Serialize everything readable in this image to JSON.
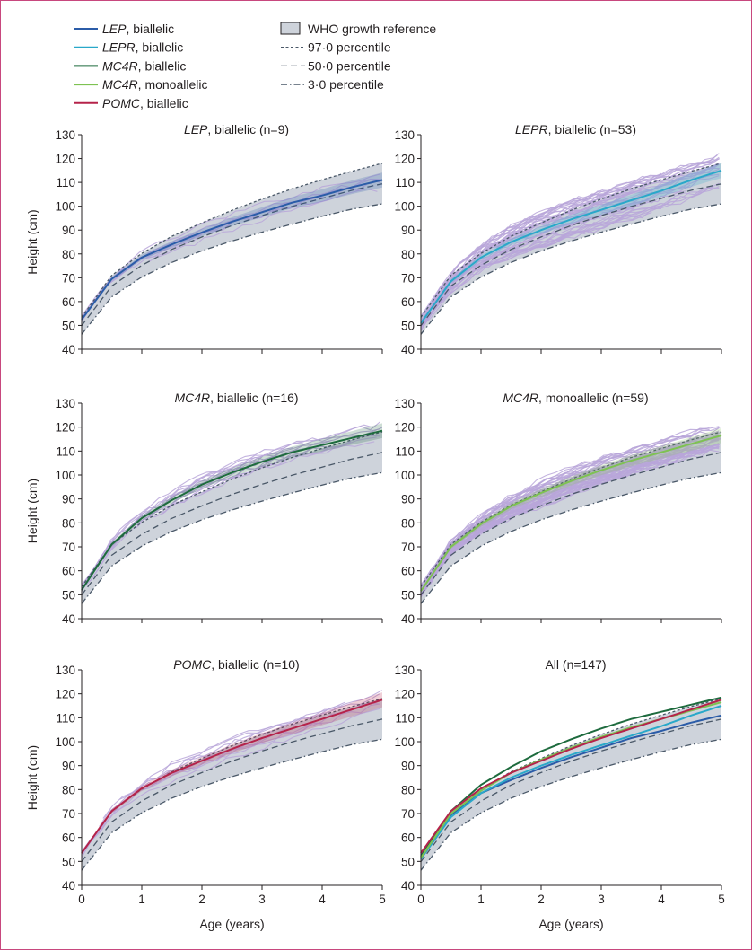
{
  "legend": {
    "items": [
      {
        "gene": "LEP",
        "suffix": ", biallelic",
        "color": "#2b5ca8",
        "kind": "line"
      },
      {
        "gene": "LEPR",
        "suffix": ", biallelic",
        "color": "#29a8c9",
        "kind": "line"
      },
      {
        "gene": "MC4R",
        "suffix": ", biallelic",
        "color": "#1e6b3e",
        "kind": "line"
      },
      {
        "gene": "MC4R",
        "suffix": ", monoallelic",
        "color": "#7ec252",
        "kind": "line"
      },
      {
        "gene": "POMC",
        "suffix": ", biallelic",
        "color": "#b5234a",
        "kind": "line"
      }
    ],
    "reference": [
      {
        "label": "WHO growth reference",
        "kind": "box"
      },
      {
        "label": "97·0 percentile",
        "kind": "p97"
      },
      {
        "label": "50·0 percentile",
        "kind": "p50"
      },
      {
        "label": "3·0 percentile",
        "kind": "p3"
      }
    ]
  },
  "colors": {
    "individual_trajectory": "#b8a6d9",
    "who_band": "#ced3db",
    "percentile_line": "#4a5868",
    "frame": "#c8487e"
  },
  "chart_data": [
    {
      "type": "line",
      "title_gene": "LEP",
      "title_rest": ", biallelic (n=9)",
      "xlabel": "",
      "ylabel": "Height (cm)",
      "xlim": [
        0,
        5
      ],
      "ylim": [
        40,
        130
      ],
      "xticks": [
        0,
        1,
        2,
        3,
        4,
        5
      ],
      "yticks": [
        40,
        50,
        60,
        70,
        80,
        90,
        100,
        110,
        120,
        130
      ],
      "show_xtick_labels": false,
      "who_reference": {
        "x": [
          0,
          0.5,
          1,
          1.5,
          2,
          2.5,
          3,
          3.5,
          4,
          4.5,
          5
        ],
        "p3": [
          46.3,
          62.0,
          70.3,
          76.4,
          81.3,
          85.4,
          89.1,
          92.5,
          95.8,
          98.8,
          101.0
        ],
        "p50": [
          49.9,
          66.5,
          75.2,
          81.9,
          87.1,
          91.9,
          96.1,
          99.9,
          103.3,
          106.7,
          109.4
        ],
        "p97": [
          53.4,
          71.0,
          80.2,
          87.4,
          93.0,
          98.3,
          103.0,
          107.3,
          111.1,
          114.7,
          118.0
        ]
      },
      "series": [
        {
          "x": [
            0,
            0.5,
            1,
            1.5,
            2,
            2.5,
            3,
            3.5,
            4,
            4.5,
            5
          ],
          "y": [
            52.5,
            69.5,
            78.5,
            84.0,
            89.0,
            93.5,
            97.5,
            101.5,
            104.5,
            108.0,
            111.0
          ],
          "color": "#2b5ca8"
        }
      ]
    },
    {
      "type": "line",
      "title_gene": "LEPR",
      "title_rest": ", biallelic (n=53)",
      "xlabel": "",
      "ylabel": "",
      "xlim": [
        0,
        5
      ],
      "ylim": [
        40,
        130
      ],
      "xticks": [
        0,
        1,
        2,
        3,
        4,
        5
      ],
      "yticks": [
        40,
        50,
        60,
        70,
        80,
        90,
        100,
        110,
        120,
        130
      ],
      "show_xtick_labels": false,
      "who_reference": {
        "x": [
          0,
          0.5,
          1,
          1.5,
          2,
          2.5,
          3,
          3.5,
          4,
          4.5,
          5
        ],
        "p3": [
          46.3,
          62.0,
          70.3,
          76.4,
          81.3,
          85.4,
          89.1,
          92.5,
          95.8,
          98.8,
          101.0
        ],
        "p50": [
          49.9,
          66.5,
          75.2,
          81.9,
          87.1,
          91.9,
          96.1,
          99.9,
          103.3,
          106.7,
          109.4
        ],
        "p97": [
          53.4,
          71.0,
          80.2,
          87.4,
          93.0,
          98.3,
          103.0,
          107.3,
          111.1,
          114.7,
          118.0
        ]
      },
      "series": [
        {
          "x": [
            0,
            0.5,
            1,
            1.5,
            2,
            2.5,
            3,
            3.5,
            4,
            4.5,
            5
          ],
          "y": [
            51.0,
            68.5,
            78.5,
            85.0,
            90.0,
            94.5,
            98.5,
            102.5,
            106.5,
            111.0,
            115.0
          ],
          "color": "#29a8c9"
        }
      ]
    },
    {
      "type": "line",
      "title_gene": "MC4R",
      "title_rest": ", biallelic (n=16)",
      "xlabel": "",
      "ylabel": "Height (cm)",
      "xlim": [
        0,
        5
      ],
      "ylim": [
        40,
        130
      ],
      "xticks": [
        0,
        1,
        2,
        3,
        4,
        5
      ],
      "yticks": [
        40,
        50,
        60,
        70,
        80,
        90,
        100,
        110,
        120,
        130
      ],
      "show_xtick_labels": false,
      "who_reference": {
        "x": [
          0,
          0.5,
          1,
          1.5,
          2,
          2.5,
          3,
          3.5,
          4,
          4.5,
          5
        ],
        "p3": [
          46.3,
          62.0,
          70.3,
          76.4,
          81.3,
          85.4,
          89.1,
          92.5,
          95.8,
          98.8,
          101.0
        ],
        "p50": [
          49.9,
          66.5,
          75.2,
          81.9,
          87.1,
          91.9,
          96.1,
          99.9,
          103.3,
          106.7,
          109.4
        ],
        "p97": [
          53.4,
          71.0,
          80.2,
          87.4,
          93.0,
          98.3,
          103.0,
          107.3,
          111.1,
          114.7,
          118.0
        ]
      },
      "series": [
        {
          "x": [
            0,
            0.5,
            1,
            1.5,
            2,
            2.5,
            3,
            3.5,
            4,
            4.5,
            5
          ],
          "y": [
            52.0,
            71.0,
            82.0,
            89.5,
            96.0,
            101.0,
            105.5,
            109.5,
            112.5,
            115.5,
            118.5
          ],
          "color": "#1e6b3e"
        }
      ]
    },
    {
      "type": "line",
      "title_gene": "MC4R",
      "title_rest": ", monoallelic (n=59)",
      "xlabel": "",
      "ylabel": "",
      "xlim": [
        0,
        5
      ],
      "ylim": [
        40,
        130
      ],
      "xticks": [
        0,
        1,
        2,
        3,
        4,
        5
      ],
      "yticks": [
        40,
        50,
        60,
        70,
        80,
        90,
        100,
        110,
        120,
        130
      ],
      "show_xtick_labels": false,
      "who_reference": {
        "x": [
          0,
          0.5,
          1,
          1.5,
          2,
          2.5,
          3,
          3.5,
          4,
          4.5,
          5
        ],
        "p3": [
          46.3,
          62.0,
          70.3,
          76.4,
          81.3,
          85.4,
          89.1,
          92.5,
          95.8,
          98.8,
          101.0
        ],
        "p50": [
          49.9,
          66.5,
          75.2,
          81.9,
          87.1,
          91.9,
          96.1,
          99.9,
          103.3,
          106.7,
          109.4
        ],
        "p97": [
          53.4,
          71.0,
          80.2,
          87.4,
          93.0,
          98.3,
          103.0,
          107.3,
          111.1,
          114.7,
          118.0
        ]
      },
      "series": [
        {
          "x": [
            0,
            0.5,
            1,
            1.5,
            2,
            2.5,
            3,
            3.5,
            4,
            4.5,
            5
          ],
          "y": [
            51.5,
            70.0,
            79.5,
            87.0,
            92.5,
            97.5,
            102.0,
            106.0,
            109.5,
            113.0,
            116.5
          ],
          "color": "#7ec252"
        }
      ]
    },
    {
      "type": "line",
      "title_gene": "POMC",
      "title_rest": ", biallelic (n=10)",
      "xlabel": "Age (years)",
      "ylabel": "Height (cm)",
      "xlim": [
        0,
        5
      ],
      "ylim": [
        40,
        130
      ],
      "xticks": [
        0,
        1,
        2,
        3,
        4,
        5
      ],
      "yticks": [
        40,
        50,
        60,
        70,
        80,
        90,
        100,
        110,
        120,
        130
      ],
      "show_xtick_labels": true,
      "who_reference": {
        "x": [
          0,
          0.5,
          1,
          1.5,
          2,
          2.5,
          3,
          3.5,
          4,
          4.5,
          5
        ],
        "p3": [
          46.3,
          62.0,
          70.3,
          76.4,
          81.3,
          85.4,
          89.1,
          92.5,
          95.8,
          98.8,
          101.0
        ],
        "p50": [
          49.9,
          66.5,
          75.2,
          81.9,
          87.1,
          91.9,
          96.1,
          99.9,
          103.3,
          106.7,
          109.4
        ],
        "p97": [
          53.4,
          71.0,
          80.2,
          87.4,
          93.0,
          98.3,
          103.0,
          107.3,
          111.1,
          114.7,
          118.0
        ]
      },
      "series": [
        {
          "x": [
            0,
            0.5,
            1,
            1.5,
            2,
            2.5,
            3,
            3.5,
            4,
            4.5,
            5
          ],
          "y": [
            53.5,
            71.0,
            80.5,
            87.0,
            92.0,
            97.0,
            101.5,
            105.5,
            109.5,
            113.5,
            117.5
          ],
          "color": "#b5234a"
        }
      ]
    },
    {
      "type": "line",
      "title_gene": "",
      "title_rest": "All (n=147)",
      "xlabel": "Age (years)",
      "ylabel": "",
      "xlim": [
        0,
        5
      ],
      "ylim": [
        40,
        130
      ],
      "xticks": [
        0,
        1,
        2,
        3,
        4,
        5
      ],
      "yticks": [
        40,
        50,
        60,
        70,
        80,
        90,
        100,
        110,
        120,
        130
      ],
      "show_xtick_labels": true,
      "who_reference": {
        "x": [
          0,
          0.5,
          1,
          1.5,
          2,
          2.5,
          3,
          3.5,
          4,
          4.5,
          5
        ],
        "p3": [
          46.3,
          62.0,
          70.3,
          76.4,
          81.3,
          85.4,
          89.1,
          92.5,
          95.8,
          98.8,
          101.0
        ],
        "p50": [
          49.9,
          66.5,
          75.2,
          81.9,
          87.1,
          91.9,
          96.1,
          99.9,
          103.3,
          106.7,
          109.4
        ],
        "p97": [
          53.4,
          71.0,
          80.2,
          87.4,
          93.0,
          98.3,
          103.0,
          107.3,
          111.1,
          114.7,
          118.0
        ]
      },
      "series": [
        {
          "name": "LEP, biallelic",
          "x": [
            0,
            0.5,
            1,
            1.5,
            2,
            2.5,
            3,
            3.5,
            4,
            4.5,
            5
          ],
          "y": [
            52.5,
            69.5,
            78.5,
            84.0,
            89.0,
            93.5,
            97.5,
            101.5,
            104.5,
            108.0,
            111.0
          ],
          "color": "#2b5ca8"
        },
        {
          "name": "LEPR, biallelic",
          "x": [
            0,
            0.5,
            1,
            1.5,
            2,
            2.5,
            3,
            3.5,
            4,
            4.5,
            5
          ],
          "y": [
            51.0,
            68.5,
            78.5,
            85.0,
            90.0,
            94.5,
            98.5,
            102.5,
            106.5,
            111.0,
            115.0
          ],
          "color": "#29a8c9"
        },
        {
          "name": "MC4R, biallelic",
          "x": [
            0,
            0.5,
            1,
            1.5,
            2,
            2.5,
            3,
            3.5,
            4,
            4.5,
            5
          ],
          "y": [
            52.0,
            71.0,
            82.0,
            89.5,
            96.0,
            101.0,
            105.5,
            109.5,
            112.5,
            115.5,
            118.5
          ],
          "color": "#1e6b3e"
        },
        {
          "name": "MC4R, monoallelic",
          "x": [
            0,
            0.5,
            1,
            1.5,
            2,
            2.5,
            3,
            3.5,
            4,
            4.5,
            5
          ],
          "y": [
            51.5,
            70.0,
            79.5,
            87.0,
            92.5,
            97.5,
            102.0,
            106.0,
            109.5,
            113.0,
            116.5
          ],
          "color": "#7ec252"
        },
        {
          "name": "POMC, biallelic",
          "x": [
            0,
            0.5,
            1,
            1.5,
            2,
            2.5,
            3,
            3.5,
            4,
            4.5,
            5
          ],
          "y": [
            53.5,
            71.0,
            80.5,
            87.0,
            92.0,
            97.0,
            101.5,
            105.5,
            109.5,
            113.5,
            117.5
          ],
          "color": "#b5234a"
        }
      ]
    }
  ]
}
